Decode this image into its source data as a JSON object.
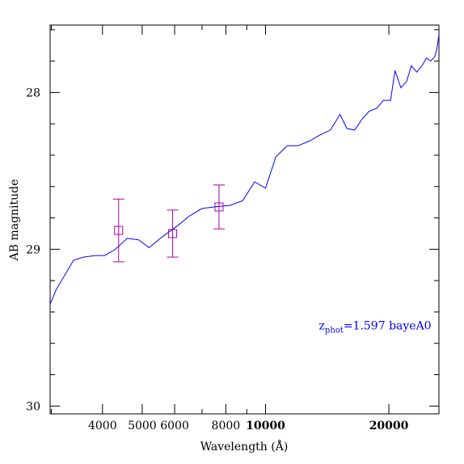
{
  "chart_data": {
    "type": "line",
    "xlabel": "Wavelength (Å)",
    "ylabel": "AB magnitude",
    "x_scale": "log",
    "y_inverted": true,
    "xlim": [
      2980,
      26500
    ],
    "ylim": [
      30.05,
      27.57
    ],
    "x_ticks": [
      {
        "value": 4000,
        "label": "4000",
        "bold": false
      },
      {
        "value": 5000,
        "label": "5000",
        "bold": false
      },
      {
        "value": 6000,
        "label": "6000",
        "bold": false
      },
      {
        "value": 8000,
        "label": "8000",
        "bold": false
      },
      {
        "value": 10000,
        "label": "10000",
        "bold": true
      },
      {
        "value": 20000,
        "label": "20000",
        "bold": true
      }
    ],
    "x_minor_ticks": [
      3000,
      7000,
      9000
    ],
    "y_ticks": [
      {
        "value": 28,
        "label": "28"
      },
      {
        "value": 29,
        "label": "29"
      },
      {
        "value": 30,
        "label": "30"
      }
    ],
    "y_minor_ticks": [
      27.6,
      27.8,
      28.2,
      28.4,
      28.6,
      28.8,
      29.2,
      29.4,
      29.6,
      29.8
    ],
    "series": [
      {
        "kind": "line",
        "color": "#0000ff",
        "points": [
          [
            2980,
            29.35
          ],
          [
            3080,
            29.26
          ],
          [
            3400,
            29.07
          ],
          [
            3600,
            29.05
          ],
          [
            3850,
            29.04
          ],
          [
            4050,
            29.04
          ],
          [
            4300,
            29.0
          ],
          [
            4600,
            28.93
          ],
          [
            4900,
            28.94
          ],
          [
            5200,
            28.99
          ],
          [
            5600,
            28.92
          ],
          [
            6100,
            28.85
          ],
          [
            6500,
            28.79
          ],
          [
            7000,
            28.74
          ],
          [
            7500,
            28.73
          ],
          [
            8200,
            28.72
          ],
          [
            8800,
            28.69
          ],
          [
            9400,
            28.57
          ],
          [
            10000,
            28.61
          ],
          [
            10600,
            28.41
          ],
          [
            11300,
            28.34
          ],
          [
            12000,
            28.34
          ],
          [
            12800,
            28.31
          ],
          [
            13600,
            28.27
          ],
          [
            14400,
            28.24
          ],
          [
            15200,
            28.14
          ],
          [
            15800,
            28.23
          ],
          [
            16500,
            28.24
          ],
          [
            17200,
            28.17
          ],
          [
            17900,
            28.12
          ],
          [
            18700,
            28.1
          ],
          [
            19400,
            28.05
          ],
          [
            20200,
            28.05
          ],
          [
            20700,
            27.86
          ],
          [
            21400,
            27.97
          ],
          [
            22100,
            27.93
          ],
          [
            22700,
            27.83
          ],
          [
            23400,
            27.87
          ],
          [
            24100,
            27.83
          ],
          [
            24700,
            27.78
          ],
          [
            25300,
            27.8
          ],
          [
            25900,
            27.77
          ],
          [
            26200,
            27.72
          ],
          [
            26500,
            27.63
          ]
        ]
      },
      {
        "kind": "errorbar",
        "color": "#aa00aa",
        "marker": "square",
        "points": [
          {
            "x": 4380,
            "y": 28.88,
            "yerr": 0.2
          },
          {
            "x": 5930,
            "y": 28.9,
            "yerr": 0.15
          },
          {
            "x": 7700,
            "y": 28.73,
            "yerr": 0.14
          }
        ]
      }
    ],
    "annotation": {
      "main": "z",
      "sub": "phot",
      "rest": "=1.597 bayeA0",
      "color": "#0000ff",
      "x": 13500,
      "y": 29.51
    }
  }
}
